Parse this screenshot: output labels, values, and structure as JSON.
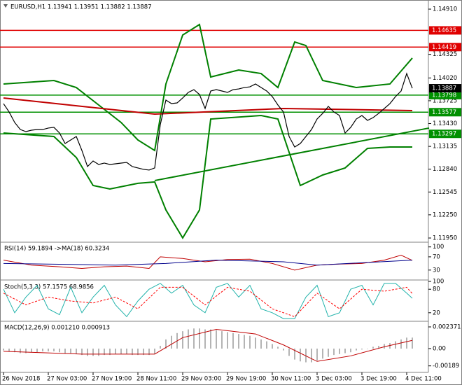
{
  "chart_data": [
    {
      "type": "line",
      "title": "EURUSD,H1  1.13941 1.13951 1.13882 1.13887",
      "color": "#000000",
      "categories": [
        "26 Nov 2018",
        null,
        null,
        null,
        null,
        null,
        null,
        null,
        "27 Nov 03:00",
        null,
        null,
        null,
        null,
        null,
        null,
        null,
        "27 Nov 19:00",
        null,
        null,
        null,
        null,
        null,
        null,
        null,
        "28 Nov 11:00",
        null,
        null,
        null,
        null,
        null,
        null,
        null,
        "29 Nov 03:00",
        null,
        null,
        null,
        null,
        null,
        null,
        null,
        "29 Nov 19:00",
        null,
        null,
        null,
        null,
        null,
        null,
        null,
        "30 Nov 11:00",
        null,
        null,
        null,
        null,
        null,
        null,
        null,
        "3 Dec 03:00",
        null,
        null,
        null,
        null,
        null,
        null,
        null,
        "3 Dec 19:00",
        null,
        null,
        null,
        null,
        null,
        null,
        null,
        "4 Dec 11:00",
        null
      ],
      "values": [
        1.13688,
        1.1358,
        1.13444,
        1.13353,
        1.13326,
        1.13344,
        1.13353,
        1.13353,
        1.13372,
        1.13381,
        1.13308,
        1.13172,
        1.13218,
        1.13263,
        1.13082,
        1.12874,
        1.12946,
        1.12901,
        1.12919,
        1.12901,
        1.1291,
        1.12919,
        1.12928,
        1.12874,
        1.12856,
        1.12838,
        1.12829,
        1.12856,
        1.13417,
        1.13734,
        1.13688,
        1.13697,
        1.13761,
        1.13833,
        1.13869,
        1.13806,
        1.13625,
        1.13851,
        1.13869,
        1.13851,
        1.13833,
        1.13869,
        1.13878,
        1.13896,
        1.13905,
        1.13942,
        1.13896,
        1.13851,
        1.13779,
        1.1367,
        1.1358,
        1.13263,
        1.13127,
        1.13172,
        1.13263,
        1.13353,
        1.13489,
        1.13562,
        1.13652,
        1.1358,
        1.13534,
        1.13308,
        1.13381,
        1.13489,
        1.13534,
        1.13471,
        1.13507,
        1.13562,
        1.13625,
        1.13688,
        1.13779,
        1.13851,
        1.14077,
        1.13887
      ],
      "upper_band": {
        "color": "#008000",
        "x": [
          0,
          9,
          13,
          17,
          21,
          24,
          27,
          29,
          32,
          35,
          37,
          42,
          46,
          49,
          52,
          54,
          57,
          63,
          69,
          73
        ],
        "values": [
          1.13942,
          1.13987,
          1.13896,
          1.1367,
          1.13444,
          1.13218,
          1.13082,
          1.13942,
          1.14575,
          1.14711,
          1.14032,
          1.14123,
          1.14077,
          1.13896,
          1.14485,
          1.14439,
          1.13987,
          1.13896,
          1.13942,
          1.14277
        ]
      },
      "lower_band": {
        "color": "#008000",
        "x": [
          0,
          9,
          13,
          16,
          19,
          24,
          27,
          29,
          32,
          35,
          37,
          46,
          49,
          53,
          57,
          61,
          65,
          69,
          73
        ],
        "values": [
          1.13308,
          1.13263,
          1.12991,
          1.12629,
          1.12584,
          1.12657,
          1.12675,
          1.12313,
          1.11951,
          1.12313,
          1.13489,
          1.13534,
          1.13489,
          1.12629,
          1.12765,
          1.12856,
          1.13109,
          1.13127,
          1.13127
        ]
      },
      "moving_average": {
        "color": "#c00000",
        "x": [
          0,
          27,
          50,
          73
        ],
        "values": [
          1.13761,
          1.13552,
          1.13625,
          1.13598
        ]
      },
      "trendline": {
        "color": "#008000",
        "x": [
          27,
          76
        ],
        "values": [
          1.12693,
          1.13372
        ]
      },
      "levels": [
        {
          "value": 1.14635,
          "color": "#e00000"
        },
        {
          "value": 1.14419,
          "color": "#e00000"
        },
        {
          "value": 1.13798,
          "color": "#009000"
        },
        {
          "value": 1.13577,
          "color": "#009000"
        },
        {
          "value": 1.13297,
          "color": "#009000"
        }
      ],
      "last_price": {
        "value": 1.13887,
        "color": "#000000"
      },
      "ylim": [
        1.11923,
        1.15028
      ],
      "yticks": [
        {
          "value": 1.1491,
          "label": "1.14910"
        },
        {
          "value": 1.14325,
          "label": "1.14325"
        },
        {
          "value": 1.1402,
          "label": "1.14020"
        },
        {
          "value": 1.13725,
          "label": "1.13725"
        },
        {
          "value": 1.1343,
          "label": "1.13430"
        },
        {
          "value": 1.13135,
          "label": "1.13135"
        },
        {
          "value": 1.1284,
          "label": "1.12840"
        },
        {
          "value": 1.12545,
          "label": "1.12545"
        },
        {
          "value": 1.1225,
          "label": "1.12250"
        },
        {
          "value": 1.1195,
          "label": "1.11950"
        }
      ]
    },
    {
      "type": "line",
      "title": "RSI(14) 59.1894 ->MA(18) 60.3234",
      "ylim": [
        0,
        110
      ],
      "yticks": [
        100,
        70,
        30
      ],
      "series": [
        {
          "color": "#c00000",
          "x": [
            0,
            5,
            10,
            14,
            18,
            22,
            26,
            28,
            32,
            36,
            40,
            44,
            48,
            52,
            56,
            60,
            64,
            68,
            71,
            73
          ],
          "values": [
            60,
            45,
            40,
            35,
            40,
            42,
            35,
            70,
            65,
            55,
            62,
            63,
            50,
            30,
            45,
            48,
            50,
            60,
            75,
            59
          ]
        },
        {
          "color": "#00008b",
          "x": [
            0,
            20,
            29,
            38,
            50,
            56,
            73
          ],
          "values": [
            50,
            45,
            50,
            60,
            55,
            45,
            60
          ]
        }
      ]
    },
    {
      "type": "line",
      "title": "Stoch(5,3,3) 57.1575 68.9856",
      "ylim": [
        0,
        100
      ],
      "yticks": [
        100,
        80,
        20
      ],
      "series": [
        {
          "color": "#20b2aa",
          "x": [
            0,
            2,
            4,
            6,
            8,
            10,
            12,
            14,
            16,
            18,
            20,
            22,
            24,
            26,
            28,
            30,
            32,
            34,
            36,
            38,
            40,
            42,
            44,
            46,
            48,
            50,
            52,
            54,
            56,
            58,
            60,
            62,
            64,
            66,
            68,
            70,
            72,
            73
          ],
          "values": [
            80,
            20,
            60,
            90,
            30,
            15,
            85,
            20,
            60,
            90,
            40,
            10,
            50,
            80,
            95,
            70,
            90,
            40,
            20,
            85,
            95,
            60,
            90,
            30,
            20,
            5,
            5,
            60,
            90,
            10,
            20,
            80,
            90,
            40,
            95,
            95,
            70,
            57
          ]
        },
        {
          "color": "#ff0000",
          "dashed": true,
          "x": [
            0,
            4,
            8,
            12,
            16,
            20,
            24,
            28,
            32,
            36,
            40,
            44,
            48,
            52,
            56,
            60,
            64,
            68,
            72,
            73
          ],
          "values": [
            70,
            40,
            60,
            50,
            45,
            60,
            30,
            85,
            85,
            40,
            85,
            75,
            30,
            10,
            70,
            30,
            80,
            75,
            85,
            69
          ]
        }
      ]
    },
    {
      "type": "bar",
      "title": "MACD(12,26,9) 0.001210 0.000913",
      "color": "#b4b4b4",
      "values": [
        -0.0002,
        -0.0003,
        -0.0004,
        -0.0005,
        -0.0005,
        -0.0004,
        -0.0004,
        -0.0003,
        -0.0003,
        -0.0003,
        -0.0004,
        -0.0005,
        -0.0005,
        -0.0006,
        -0.0007,
        -0.0008,
        -0.0008,
        -0.0008,
        -0.0007,
        -0.0007,
        -0.0006,
        -0.0006,
        -0.0006,
        -0.0007,
        -0.0007,
        -0.0007,
        -0.0007,
        -0.0006,
        0.0003,
        0.001,
        0.0014,
        0.0017,
        0.0019,
        0.0021,
        0.0022,
        0.0022,
        0.0021,
        0.0021,
        0.002,
        0.0019,
        0.0018,
        0.0017,
        0.0016,
        0.0015,
        0.0014,
        0.0012,
        0.001,
        0.0008,
        0.0005,
        0.0002,
        -0.0002,
        -0.0008,
        -0.0012,
        -0.0014,
        -0.0015,
        -0.0015,
        -0.0013,
        -0.0011,
        -0.0009,
        -0.0007,
        -0.0006,
        -0.0005,
        -0.0004,
        -0.0002,
        -0.0001,
        0.0,
        0.0002,
        0.0003,
        0.0005,
        0.0006,
        0.0008,
        0.001,
        0.0012,
        0.0012
      ],
      "signal": {
        "color": "#c00000",
        "x": [
          0,
          14,
          27,
          32,
          38,
          45,
          50,
          56,
          62,
          68,
          73
        ],
        "values": [
          -0.0003,
          -0.0006,
          -0.0006,
          0.0012,
          0.0021,
          0.0016,
          0.0004,
          -0.0014,
          -0.0008,
          0.0002,
          0.0009
        ]
      },
      "ylim": [
        -0.00245,
        0.00283
      ],
      "yticks": [
        0.002371,
        {
          "value": 0,
          "label": "0.00"
        },
        -0.00189
      ]
    }
  ]
}
